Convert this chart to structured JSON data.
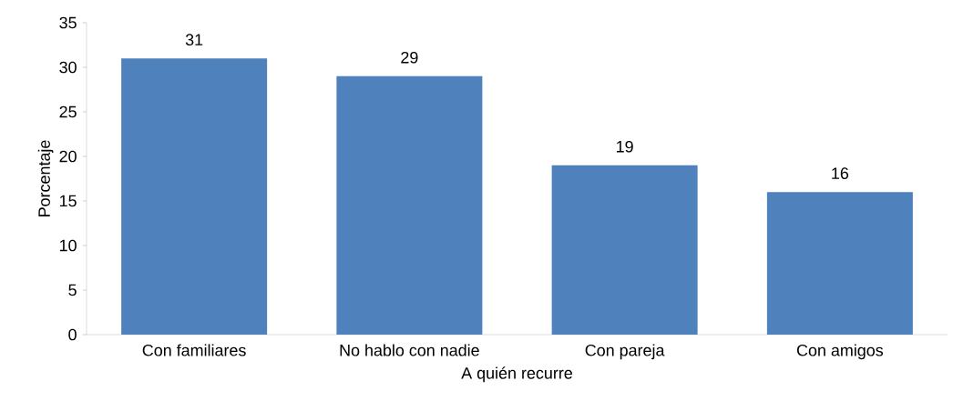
{
  "chart_data": {
    "type": "bar",
    "xlabel": "A quién recurre",
    "ylabel": "Porcentaje",
    "categories": [
      "Con familiares",
      "No hablo con nadie",
      "Con pareja",
      "Con amigos"
    ],
    "values": [
      31,
      29,
      19,
      16
    ],
    "color": "#4f81bd",
    "ylim": [
      0,
      35
    ],
    "yticks": [
      0,
      5,
      10,
      15,
      20,
      25,
      30,
      35
    ],
    "data_labels": true
  }
}
